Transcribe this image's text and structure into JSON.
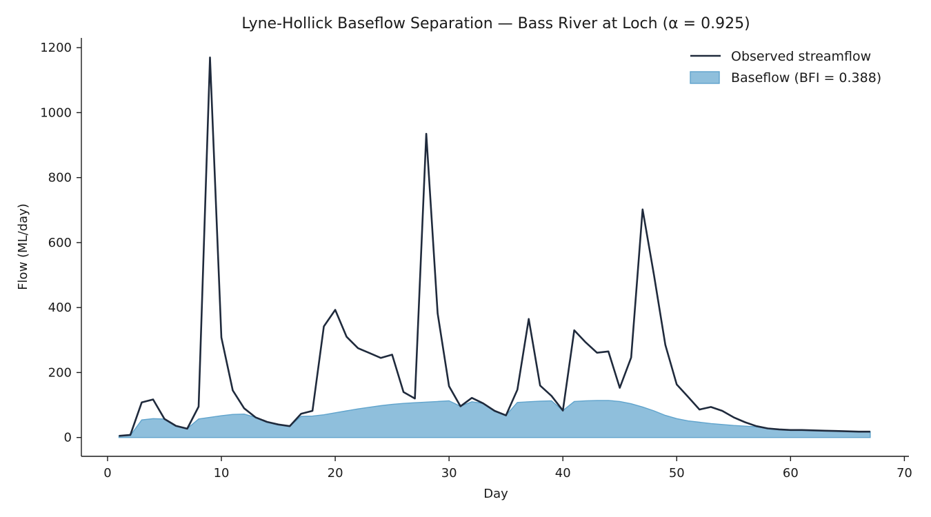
{
  "chart_data": {
    "type": "line",
    "title": "Lyne-Hollick Baseflow Separation — Bass River at Loch (α = 0.925)",
    "xlabel": "Day",
    "ylabel": "Flow (ML/day)",
    "xlim": [
      -2.3,
      70.4
    ],
    "ylim": [
      -58,
      1230
    ],
    "xticks": [
      0,
      10,
      20,
      30,
      40,
      50,
      60,
      70
    ],
    "yticks": [
      0,
      200,
      400,
      600,
      800,
      1000,
      1200
    ],
    "grid": false,
    "legend_position": "top-right",
    "x": [
      1,
      2,
      3,
      4,
      5,
      6,
      7,
      8,
      9,
      10,
      11,
      12,
      13,
      14,
      15,
      16,
      17,
      18,
      19,
      20,
      21,
      22,
      23,
      24,
      25,
      26,
      27,
      28,
      29,
      30,
      31,
      32,
      33,
      34,
      35,
      36,
      37,
      38,
      39,
      40,
      41,
      42,
      43,
      44,
      45,
      46,
      47,
      48,
      49,
      50,
      51,
      52,
      53,
      54,
      55,
      56,
      57,
      58,
      59,
      60,
      61,
      62,
      63,
      64,
      65,
      66,
      67
    ],
    "series": [
      {
        "name": "Observed streamflow",
        "kind": "line",
        "color": "#1f2a3c",
        "values": [
          5,
          8,
          108,
          117,
          57,
          36,
          27,
          95,
          1170,
          308,
          145,
          90,
          62,
          48,
          40,
          35,
          73,
          82,
          342,
          393,
          310,
          275,
          260,
          245,
          255,
          140,
          120,
          935,
          382,
          158,
          96,
          122,
          105,
          82,
          68,
          147,
          365,
          160,
          128,
          83,
          330,
          293,
          261,
          265,
          153,
          246,
          702,
          500,
          285,
          163,
          125,
          86,
          94,
          82,
          62,
          47,
          35,
          28,
          25,
          23,
          23,
          22,
          21,
          20,
          19,
          18,
          18
        ],
        "text_key": "legend.observed"
      },
      {
        "name": "Baseflow (BFI = 0.388)",
        "kind": "area",
        "color": "#8fbfdc",
        "edge_color": "#5fa3cc",
        "values": [
          5,
          6,
          54,
          58,
          57,
          36,
          27,
          57,
          62,
          67,
          71,
          72,
          62,
          48,
          40,
          35,
          65,
          66,
          70,
          76,
          82,
          88,
          93,
          98,
          102,
          105,
          107,
          109,
          111,
          113,
          96,
          110,
          105,
          82,
          68,
          108,
          110,
          112,
          113,
          83,
          111,
          113,
          114,
          114,
          111,
          104,
          94,
          82,
          68,
          58,
          51,
          47,
          43,
          40,
          37,
          35,
          33,
          28,
          25,
          23,
          23,
          22,
          21,
          20,
          19,
          18,
          18
        ],
        "text_key": "legend.baseflow"
      }
    ]
  },
  "legend": {
    "observed": "Observed streamflow",
    "baseflow": "Baseflow (BFI = 0.388)"
  }
}
